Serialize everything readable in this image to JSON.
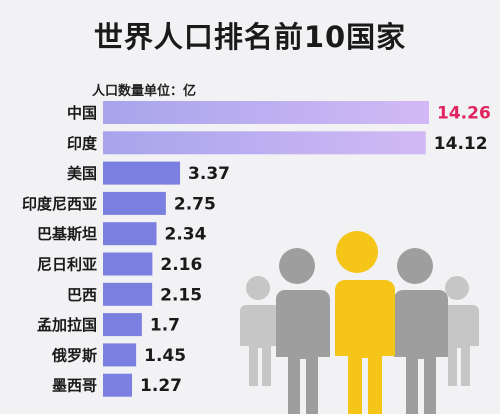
{
  "chart_data": {
    "type": "bar",
    "orientation": "horizontal",
    "title": "世界人口排名前10国家",
    "unit_label": "人口数量单位：亿",
    "categories": [
      "中国",
      "印度",
      "美国",
      "印度尼西亚",
      "巴基斯坦",
      "尼日利亚",
      "巴西",
      "孟加拉国",
      "俄罗斯",
      "墨西哥"
    ],
    "values": [
      14.26,
      14.12,
      3.37,
      2.75,
      2.34,
      2.16,
      2.15,
      1.7,
      1.45,
      1.27
    ],
    "value_labels": [
      "14.26",
      "14.12",
      "3.37",
      "2.75",
      "2.34",
      "2.16",
      "2.15",
      "1.7",
      "1.45",
      "1.27"
    ],
    "highlight_index": 0,
    "colors": {
      "bar_main": "#7b7fe0",
      "bar_top_start": "#c9b7f0",
      "bar_top_end": "#a8a0ee",
      "highlight_text": "#e0245e",
      "text": "#1a1a1a",
      "person_main": "#f5c518",
      "person_side": "#9a9a9a",
      "person_far": "#c4c4c4"
    },
    "grid": false,
    "legend": "none"
  },
  "decoration": {
    "illustration": "people-group-icon"
  }
}
